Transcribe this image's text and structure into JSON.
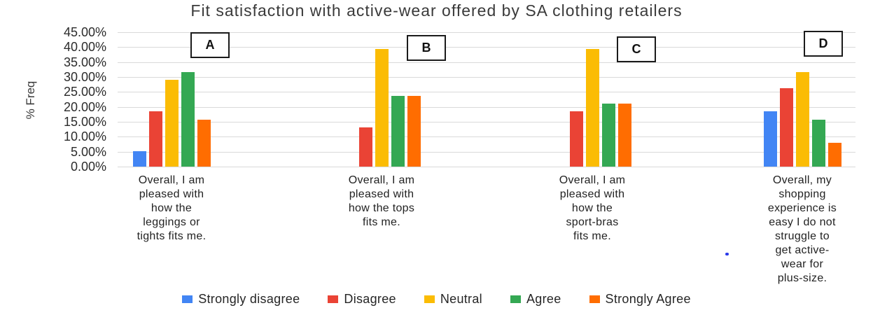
{
  "chart_data": {
    "type": "bar",
    "title": "Fit satisfaction with active-wear offered by SA clothing retailers",
    "ylabel": "% Freq",
    "xlabel": "",
    "ylim": [
      0,
      45
    ],
    "ytick_labels": [
      "45.00%",
      "40.00%",
      "35.00%",
      "30.00%",
      "25.00%",
      "20.00%",
      "15.00%",
      "10.00%",
      "5.00%",
      "0.00%"
    ],
    "grid": true,
    "legend_position": "bottom",
    "gridline_color": "#d9d9d9",
    "categories": [
      "Overall, I am pleased with how the leggings or tights fits me.",
      "Overall, I am pleased with how the tops fits me.",
      "Overall, I am pleased with how the sport-bras fits me.",
      "Overall, my shopping experience is easy I do not struggle to get active-wear for plus-size."
    ],
    "category_lines": [
      [
        "Overall, I am",
        "pleased with",
        "how the",
        "leggings or",
        "tights fits me."
      ],
      [
        "Overall, I am",
        "pleased with",
        "how the tops",
        "fits me."
      ],
      [
        "Overall, I am",
        "pleased with",
        "how the",
        "sport-bras",
        "fits me."
      ],
      [
        "Overall, my",
        "shopping",
        "experience is",
        "easy I do not",
        "struggle to",
        "get active-",
        "wear for",
        "plus-size."
      ]
    ],
    "group_annotations": [
      "A",
      "B",
      "C",
      "D"
    ],
    "series": [
      {
        "name": "Strongly disagree",
        "color": "#4285F4",
        "values": [
          5.26,
          0,
          0,
          18.42
        ]
      },
      {
        "name": "Disagree",
        "color": "#EA4335",
        "values": [
          18.42,
          13.16,
          18.42,
          26.32
        ]
      },
      {
        "name": "Neutral",
        "color": "#FBBC04",
        "values": [
          28.95,
          39.47,
          39.47,
          31.58
        ]
      },
      {
        "name": "Agree",
        "color": "#34A853",
        "values": [
          31.58,
          23.68,
          21.05,
          15.79
        ]
      },
      {
        "name": "Strongly Agree",
        "color": "#FF6D01",
        "values": [
          15.79,
          23.68,
          21.05,
          7.89
        ]
      }
    ],
    "stray_mark_color": "#2b3bea"
  }
}
